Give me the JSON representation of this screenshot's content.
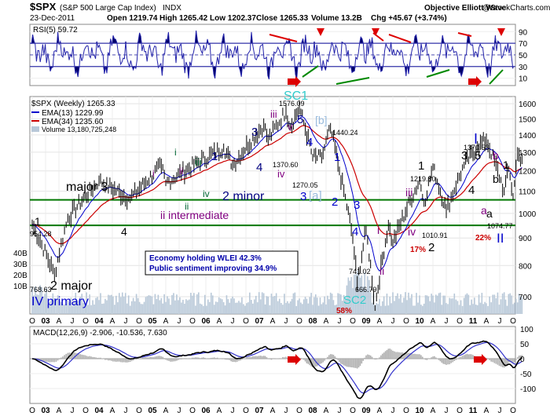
{
  "header": {
    "symbol": "$SPX",
    "name": "(S&P 500 Large Cap Index)",
    "exchange": "INDX",
    "date": "23-Dec-2011",
    "open": "Open 1219.74",
    "high": "High 1265.42",
    "low": "Low 1202.37",
    "close": "Close 1265.33",
    "volume": "Volume 13.2B",
    "chg": "Chg +45.67 (+3.74%)",
    "attribution": "Objective Elliott Wave",
    "attribution_site": "@StockCharts.com"
  },
  "rsi_panel": {
    "label": "RSI(5) 59.72",
    "ticks": [
      {
        "label": "90",
        "value": 90
      },
      {
        "label": "70",
        "value": 70
      },
      {
        "label": "50",
        "value": 50
      },
      {
        "label": "30",
        "value": 30
      },
      {
        "label": "10",
        "value": 10
      }
    ]
  },
  "price_panel": {
    "legend": [
      {
        "text": "$SPX (Weekly) 1265.33",
        "color": "#000000"
      },
      {
        "text": "EMA(13) 1229.99",
        "color": "#0000cc"
      },
      {
        "text": "EMA(34) 1235.60",
        "color": "#cc0000"
      },
      {
        "text": "Volume 13,180,725,248",
        "color": "#6688aa"
      }
    ],
    "right_ticks": [
      "1600",
      "1500",
      "1400",
      "1300",
      "1200",
      "1100",
      "1000",
      "900",
      "800",
      "700"
    ],
    "left_volume_ticks": [
      "40B",
      "30B",
      "20B",
      "10B"
    ],
    "note_lines": [
      "Economy holding WLEI 42.3%",
      "Public sentiment improving 34.9%"
    ],
    "support_lines": [
      1060,
      950
    ],
    "price_labels": [
      "1576.09",
      "1440.24",
      "1370.60",
      "1270.05",
      "741.02",
      "666.79",
      "954.28",
      "768.63",
      "1219.80",
      "1010.91",
      "1370.58",
      "1074.77"
    ],
    "wave_labels": [
      {
        "t": "1",
        "c": "#000000"
      },
      {
        "t": "2 major",
        "c": "#000000"
      },
      {
        "t": "IV primary",
        "c": "#0000cc"
      },
      {
        "t": "major 3",
        "c": "#000000"
      },
      {
        "t": "4",
        "c": "#000000"
      },
      {
        "t": "i",
        "c": "#800080"
      },
      {
        "t": "ii",
        "c": "#800080"
      },
      {
        "t": "iii",
        "c": "#006633"
      },
      {
        "t": "i",
        "c": "#006633"
      },
      {
        "t": "ii intermediate",
        "c": "#800080"
      },
      {
        "t": "iv",
        "c": "#006633"
      },
      {
        "t": "ii",
        "c": "#006633"
      },
      {
        "t": "1",
        "c": "#000080"
      },
      {
        "t": "2 minor",
        "c": "#000080"
      },
      {
        "t": "3",
        "c": "#000080"
      },
      {
        "t": "4",
        "c": "#000080"
      },
      {
        "t": "iii",
        "c": "#800080"
      },
      {
        "t": "iv",
        "c": "#800080"
      },
      {
        "t": "v",
        "c": "#800080"
      },
      {
        "t": "5",
        "c": "#000080"
      },
      {
        "t": "SC1",
        "c": "#33cccc"
      },
      {
        "t": "[b]",
        "c": "#99bbdd"
      },
      {
        "t": "3",
        "c": "#0000cc"
      },
      {
        "t": "[a]",
        "c": "#99bbdd"
      },
      {
        "t": "4",
        "c": "#0000cc"
      },
      {
        "t": "1",
        "c": "#0000cc"
      },
      {
        "t": "2",
        "c": "#0000cc"
      },
      {
        "t": "3",
        "c": "#0000cc"
      },
      {
        "t": "4",
        "c": "#0000cc"
      },
      {
        "t": "SC2",
        "c": "#33cccc"
      },
      {
        "t": "i",
        "c": "#800080"
      },
      {
        "t": "ii",
        "c": "#800080"
      },
      {
        "t": "iii",
        "c": "#800080"
      },
      {
        "t": "iv",
        "c": "#800080"
      },
      {
        "t": "1",
        "c": "#000000"
      },
      {
        "t": "2",
        "c": "#000000"
      },
      {
        "t": "3",
        "c": "#000000"
      },
      {
        "t": "4",
        "c": "#000000"
      },
      {
        "t": "5",
        "c": "#000000"
      },
      {
        "t": "I",
        "c": "#0000cc"
      },
      {
        "t": "a",
        "c": "#800080"
      },
      {
        "t": "b",
        "c": "#800080"
      },
      {
        "t": "a",
        "c": "#000000"
      },
      {
        "t": "b",
        "c": "#000000"
      },
      {
        "t": "1",
        "c": "#000000"
      },
      {
        "t": "II",
        "c": "#0000cc"
      }
    ],
    "percent_labels": [
      "58%",
      "17%",
      "22%"
    ]
  },
  "macd_panel": {
    "label": "MACD(12,26,9) -2.906, -10.536, 7.630",
    "ticks": [
      {
        "label": "100",
        "value": 100
      },
      {
        "label": "50",
        "value": 50
      },
      {
        "label": "0",
        "value": 0
      },
      {
        "label": "-50",
        "value": -50
      },
      {
        "label": "-100",
        "value": -100
      }
    ]
  },
  "x_axis": {
    "labels": [
      "O",
      "03",
      "A",
      "J",
      "O",
      "04",
      "A",
      "J",
      "O",
      "05",
      "A",
      "J",
      "O",
      "06",
      "A",
      "J",
      "O",
      "07",
      "A",
      "J",
      "O",
      "08",
      "A",
      "J",
      "O",
      "09",
      "A",
      "J",
      "O",
      "10",
      "A",
      "J",
      "O",
      "11",
      "A",
      "J",
      "O"
    ]
  },
  "chart_data": {
    "type": "line",
    "title": "$SPX (S&P 500 Large Cap Index) INDX",
    "xlabel": "",
    "ylabel": "",
    "x": [
      "2002-10",
      "2003-03",
      "2003-06",
      "2004-01",
      "2004-08",
      "2005-03",
      "2005-04",
      "2006-05",
      "2006-07",
      "2007-02",
      "2007-03",
      "2007-07",
      "2007-08",
      "2007-10",
      "2008-01",
      "2008-03",
      "2008-05",
      "2008-07",
      "2008-10",
      "2008-11",
      "2009-01",
      "2009-03",
      "2009-06",
      "2009-07",
      "2010-01",
      "2010-02",
      "2010-04",
      "2010-07",
      "2010-11",
      "2011-02",
      "2011-04",
      "2011-08",
      "2011-09",
      "2011-10",
      "2011-11",
      "2011-12"
    ],
    "series": [
      {
        "name": "$SPX (Weekly)",
        "values": [
          954.28,
          768.63,
          980,
          1150,
          1065,
          1225,
          1140,
          1325,
          1230,
          1460,
          1370.6,
          1550,
          1450,
          1576.09,
          1270.05,
          1270.05,
          1440.24,
          1200,
          900,
          741.02,
          930,
          666.79,
          950,
          880,
          1150,
          1045,
          1219.8,
          1010.91,
          1230,
          1330,
          1370.58,
          1100,
          1210,
          1074.77,
          1290,
          1265.33
        ]
      }
    ],
    "ylim": [
      650,
      1650
    ]
  }
}
